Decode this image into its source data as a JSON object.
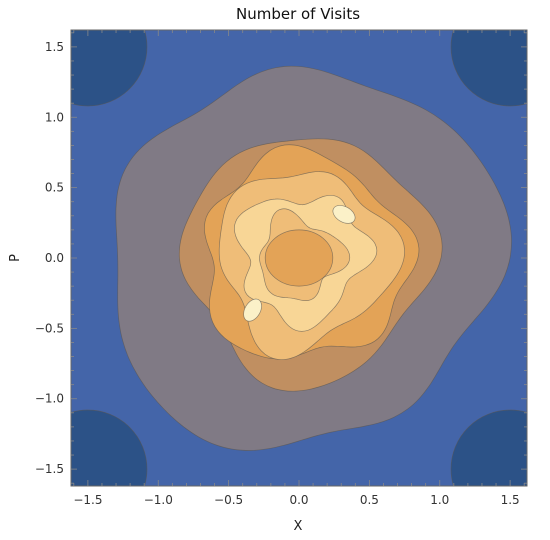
{
  "chart_data": {
    "type": "contour",
    "title": "Number of Visits",
    "xlabel": "X",
    "ylabel": "P",
    "xlim": [
      -1.62,
      1.62
    ],
    "ylim": [
      -1.62,
      1.62
    ],
    "x_ticks": [
      {
        "value": -1.5,
        "label": "−1.5"
      },
      {
        "value": -1.0,
        "label": "−1.0"
      },
      {
        "value": -0.5,
        "label": "−0.5"
      },
      {
        "value": 0.0,
        "label": "0.0"
      },
      {
        "value": 0.5,
        "label": "0.5"
      },
      {
        "value": 1.0,
        "label": "1.0"
      },
      {
        "value": 1.5,
        "label": "1.5"
      }
    ],
    "y_ticks": [
      {
        "value": 1.5,
        "label": "1.5"
      },
      {
        "value": 1.0,
        "label": "1.0"
      },
      {
        "value": 0.5,
        "label": "0.5"
      },
      {
        "value": 0.0,
        "label": "0.0"
      },
      {
        "value": -0.5,
        "label": "−0.5"
      },
      {
        "value": -1.0,
        "label": "−1.0"
      },
      {
        "value": -1.5,
        "label": "−1.5"
      }
    ],
    "levels": [
      {
        "level": 0,
        "color": "#2c5287"
      },
      {
        "level": 1,
        "color": "#4465a9"
      },
      {
        "level": 2,
        "color": "#807a85"
      },
      {
        "level": 3,
        "color": "#c08f61"
      },
      {
        "level": 4,
        "color": "#e3a357"
      },
      {
        "level": 5,
        "color": "#efbd78"
      },
      {
        "level": 6,
        "color": "#f8d696"
      },
      {
        "level": 7,
        "color": "#fbf1c8"
      }
    ],
    "center_patch": {
      "x": 0.0,
      "y": 0.0,
      "rx": 0.24,
      "ry": 0.2,
      "level": 4
    },
    "regions": [
      {
        "name": "corner-dark",
        "level": 0,
        "x": -1.5,
        "y": 1.5
      },
      {
        "name": "corner-dark",
        "level": 0,
        "x": 1.5,
        "y": 1.5
      },
      {
        "name": "corner-dark",
        "level": 0,
        "x": -1.5,
        "y": -1.5
      },
      {
        "name": "corner-dark",
        "level": 0,
        "x": 1.5,
        "y": -1.5
      },
      {
        "name": "peak",
        "level": 7,
        "x": 0.32,
        "y": 0.31
      },
      {
        "name": "peak",
        "level": 7,
        "x": -0.33,
        "y": -0.37
      }
    ]
  }
}
